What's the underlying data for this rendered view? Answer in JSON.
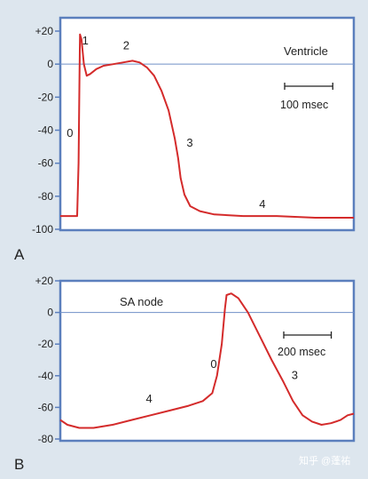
{
  "watermark": "知乎 @蓬祐",
  "colors": {
    "background": "#dde6ee",
    "frame": "#5b7fbd",
    "curve": "#d42b2b",
    "zero_line": "#6f8fc7",
    "text": "#222222"
  },
  "chart_data": [
    {
      "type": "line",
      "panel_label": "A",
      "title": "Ventricle",
      "xlabel": "",
      "ylabel": "",
      "ylim": [
        -100,
        20
      ],
      "xlim": [
        0,
        610
      ],
      "x_unit": "msec",
      "y_ticks": [
        20,
        0,
        -20,
        -40,
        -60,
        -80,
        -100
      ],
      "y_tick_labels": [
        "+20",
        "0",
        "-20",
        "-40",
        "-60",
        "-80",
        "-100"
      ],
      "reference_line_y": 0,
      "scale_bar": {
        "length": 100,
        "label": "100 msec"
      },
      "phase_labels": [
        {
          "text": "0",
          "x": 20,
          "y": -44
        },
        {
          "text": "1",
          "x": 52,
          "y": 12
        },
        {
          "text": "2",
          "x": 137,
          "y": 9
        },
        {
          "text": "3",
          "x": 269,
          "y": -50
        },
        {
          "text": "4",
          "x": 420,
          "y": -87
        }
      ],
      "series": [
        {
          "values": [
            [
              0,
              -92
            ],
            [
              30,
              -92
            ],
            [
              35,
              -92
            ],
            [
              38,
              -60
            ],
            [
              40,
              -5
            ],
            [
              41,
              18
            ],
            [
              44,
              15
            ],
            [
              49,
              0
            ],
            [
              55,
              -7
            ],
            [
              62,
              -6
            ],
            [
              75,
              -3
            ],
            [
              90,
              -1
            ],
            [
              110,
              0
            ],
            [
              130,
              1
            ],
            [
              150,
              2
            ],
            [
              165,
              1
            ],
            [
              180,
              -2
            ],
            [
              195,
              -7
            ],
            [
              210,
              -16
            ],
            [
              225,
              -28
            ],
            [
              238,
              -45
            ],
            [
              245,
              -57
            ],
            [
              250,
              -69
            ],
            [
              258,
              -79
            ],
            [
              270,
              -86
            ],
            [
              290,
              -89
            ],
            [
              320,
              -91
            ],
            [
              380,
              -92
            ],
            [
              450,
              -92
            ],
            [
              530,
              -93
            ],
            [
              610,
              -93
            ]
          ]
        }
      ]
    },
    {
      "type": "line",
      "panel_label": "B",
      "title": "SA node",
      "xlabel": "",
      "ylabel": "",
      "ylim": [
        -80,
        20
      ],
      "xlim": [
        0,
        1236
      ],
      "x_unit": "msec",
      "y_ticks": [
        20,
        0,
        -20,
        -40,
        -60,
        -80
      ],
      "y_tick_labels": [
        "+20",
        "0",
        "-20",
        "-40",
        "-60",
        "-80"
      ],
      "reference_line_y": 0,
      "scale_bar": {
        "length": 200,
        "label": "200 msec"
      },
      "phase_labels": [
        {
          "text": "4",
          "x": 374,
          "y": -57
        },
        {
          "text": "0",
          "x": 646,
          "y": -35
        },
        {
          "text": "3",
          "x": 987,
          "y": -42
        }
      ],
      "series": [
        {
          "values": [
            [
              0,
              -68
            ],
            [
              30,
              -71
            ],
            [
              80,
              -73
            ],
            [
              140,
              -73
            ],
            [
              220,
              -71
            ],
            [
              300,
              -68
            ],
            [
              380,
              -65
            ],
            [
              460,
              -62
            ],
            [
              540,
              -59
            ],
            [
              600,
              -56
            ],
            [
              640,
              -51
            ],
            [
              660,
              -40
            ],
            [
              680,
              -20
            ],
            [
              693,
              2
            ],
            [
              700,
              11
            ],
            [
              720,
              12
            ],
            [
              750,
              9
            ],
            [
              790,
              0
            ],
            [
              840,
              -15
            ],
            [
              890,
              -30
            ],
            [
              940,
              -44
            ],
            [
              980,
              -56
            ],
            [
              1020,
              -65
            ],
            [
              1060,
              -69
            ],
            [
              1100,
              -71
            ],
            [
              1140,
              -70
            ],
            [
              1180,
              -68
            ],
            [
              1210,
              -65
            ],
            [
              1236,
              -64
            ]
          ]
        }
      ]
    }
  ]
}
